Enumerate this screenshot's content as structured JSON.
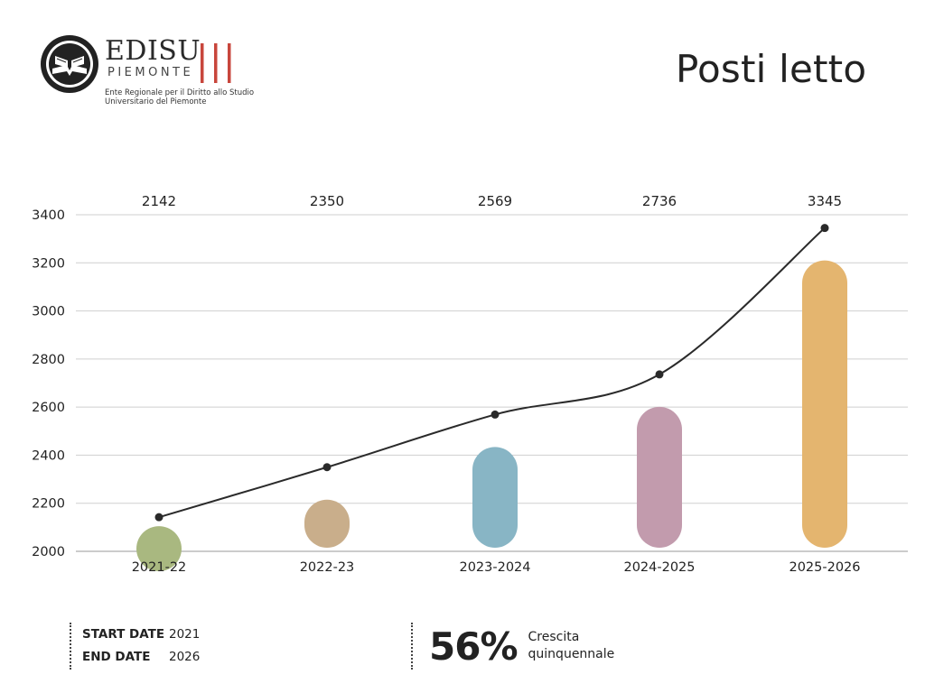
{
  "logo": {
    "name": "EDISU",
    "sub": "PIEMONTE",
    "description": "Ente Regionale per il Diritto allo Studio Universitario del Piemonte",
    "accent_color": "#c8463c"
  },
  "title": "Posti letto",
  "chart_data": {
    "type": "bar",
    "categories": [
      "2021-22",
      "2022-23",
      "2023-2024",
      "2024-2025",
      "2025-2026"
    ],
    "values": [
      2142,
      2350,
      2569,
      2736,
      3345
    ],
    "data_labels": [
      "2142",
      "2350",
      "2569",
      "2736",
      "3345"
    ],
    "bar_colors": [
      "#a9b880",
      "#c9ae8b",
      "#88b5c5",
      "#c29bad",
      "#e4b56f"
    ],
    "line_color": "#2a2a2a",
    "overlay": "line",
    "ylim": [
      2000,
      3400
    ],
    "yticks": [
      2000,
      2200,
      2400,
      2600,
      2800,
      3000,
      3200,
      3400
    ],
    "grid": true,
    "title": "Posti letto",
    "xlabel": "",
    "ylabel": ""
  },
  "footer": {
    "start_label": "START DATE",
    "start_value": "2021",
    "end_label": "END DATE",
    "end_value": "2026",
    "growth_pct": "56%",
    "growth_text_1": "Crescita",
    "growth_text_2": "quinquennale"
  }
}
